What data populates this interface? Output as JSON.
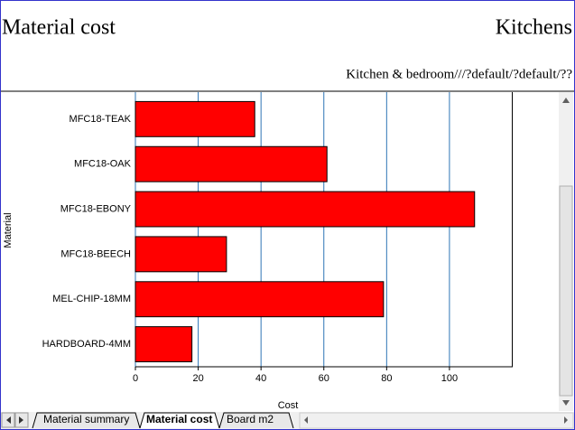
{
  "header": {
    "title": "Material cost",
    "section": "Kitchens",
    "path": "Kitchen & bedroom///?default/?default/??"
  },
  "chart_data": {
    "type": "bar",
    "orientation": "horizontal",
    "categories": [
      "MFC18-TEAK",
      "MFC18-OAK",
      "MFC18-EBONY",
      "MFC18-BEECH",
      "MEL-CHIP-18MM",
      "HARDBOARD-4MM"
    ],
    "values": [
      38,
      61,
      108,
      29,
      79,
      18
    ],
    "color": "#ff0000",
    "xlabel": "Cost",
    "ylabel": "Material",
    "xlim": [
      0,
      120
    ],
    "xticks": [
      0,
      20,
      40,
      60,
      80,
      100
    ],
    "grid": true,
    "grid_color": "#2e75b6"
  },
  "tabs": [
    "Material summary",
    "Material cost",
    "Board m2"
  ]
}
